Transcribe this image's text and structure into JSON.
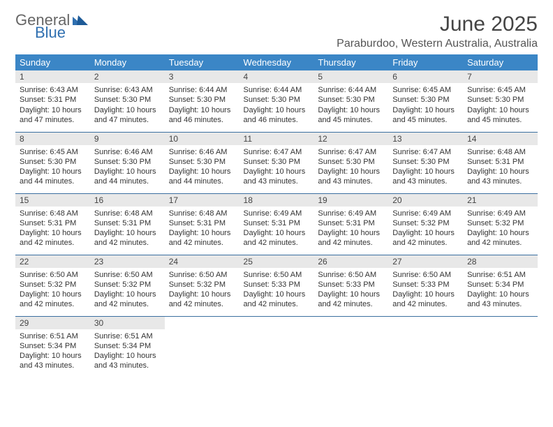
{
  "brand": {
    "part1": "General",
    "part2": "Blue"
  },
  "title": "June 2025",
  "location": "Paraburdoo, Western Australia, Australia",
  "colors": {
    "header_bg": "#3b86c6",
    "header_text": "#ffffff",
    "daynum_bg": "#e8e8e8",
    "row_border": "#3b6fa0",
    "brand_blue": "#2f6fb0"
  },
  "weekdays": [
    "Sunday",
    "Monday",
    "Tuesday",
    "Wednesday",
    "Thursday",
    "Friday",
    "Saturday"
  ],
  "days": [
    {
      "n": 1,
      "sr": "6:43 AM",
      "ss": "5:31 PM",
      "dl": "10 hours and 47 minutes."
    },
    {
      "n": 2,
      "sr": "6:43 AM",
      "ss": "5:30 PM",
      "dl": "10 hours and 47 minutes."
    },
    {
      "n": 3,
      "sr": "6:44 AM",
      "ss": "5:30 PM",
      "dl": "10 hours and 46 minutes."
    },
    {
      "n": 4,
      "sr": "6:44 AM",
      "ss": "5:30 PM",
      "dl": "10 hours and 46 minutes."
    },
    {
      "n": 5,
      "sr": "6:44 AM",
      "ss": "5:30 PM",
      "dl": "10 hours and 45 minutes."
    },
    {
      "n": 6,
      "sr": "6:45 AM",
      "ss": "5:30 PM",
      "dl": "10 hours and 45 minutes."
    },
    {
      "n": 7,
      "sr": "6:45 AM",
      "ss": "5:30 PM",
      "dl": "10 hours and 45 minutes."
    },
    {
      "n": 8,
      "sr": "6:45 AM",
      "ss": "5:30 PM",
      "dl": "10 hours and 44 minutes."
    },
    {
      "n": 9,
      "sr": "6:46 AM",
      "ss": "5:30 PM",
      "dl": "10 hours and 44 minutes."
    },
    {
      "n": 10,
      "sr": "6:46 AM",
      "ss": "5:30 PM",
      "dl": "10 hours and 44 minutes."
    },
    {
      "n": 11,
      "sr": "6:47 AM",
      "ss": "5:30 PM",
      "dl": "10 hours and 43 minutes."
    },
    {
      "n": 12,
      "sr": "6:47 AM",
      "ss": "5:30 PM",
      "dl": "10 hours and 43 minutes."
    },
    {
      "n": 13,
      "sr": "6:47 AM",
      "ss": "5:30 PM",
      "dl": "10 hours and 43 minutes."
    },
    {
      "n": 14,
      "sr": "6:48 AM",
      "ss": "5:31 PM",
      "dl": "10 hours and 43 minutes."
    },
    {
      "n": 15,
      "sr": "6:48 AM",
      "ss": "5:31 PM",
      "dl": "10 hours and 42 minutes."
    },
    {
      "n": 16,
      "sr": "6:48 AM",
      "ss": "5:31 PM",
      "dl": "10 hours and 42 minutes."
    },
    {
      "n": 17,
      "sr": "6:48 AM",
      "ss": "5:31 PM",
      "dl": "10 hours and 42 minutes."
    },
    {
      "n": 18,
      "sr": "6:49 AM",
      "ss": "5:31 PM",
      "dl": "10 hours and 42 minutes."
    },
    {
      "n": 19,
      "sr": "6:49 AM",
      "ss": "5:31 PM",
      "dl": "10 hours and 42 minutes."
    },
    {
      "n": 20,
      "sr": "6:49 AM",
      "ss": "5:32 PM",
      "dl": "10 hours and 42 minutes."
    },
    {
      "n": 21,
      "sr": "6:49 AM",
      "ss": "5:32 PM",
      "dl": "10 hours and 42 minutes."
    },
    {
      "n": 22,
      "sr": "6:50 AM",
      "ss": "5:32 PM",
      "dl": "10 hours and 42 minutes."
    },
    {
      "n": 23,
      "sr": "6:50 AM",
      "ss": "5:32 PM",
      "dl": "10 hours and 42 minutes."
    },
    {
      "n": 24,
      "sr": "6:50 AM",
      "ss": "5:32 PM",
      "dl": "10 hours and 42 minutes."
    },
    {
      "n": 25,
      "sr": "6:50 AM",
      "ss": "5:33 PM",
      "dl": "10 hours and 42 minutes."
    },
    {
      "n": 26,
      "sr": "6:50 AM",
      "ss": "5:33 PM",
      "dl": "10 hours and 42 minutes."
    },
    {
      "n": 27,
      "sr": "6:50 AM",
      "ss": "5:33 PM",
      "dl": "10 hours and 42 minutes."
    },
    {
      "n": 28,
      "sr": "6:51 AM",
      "ss": "5:34 PM",
      "dl": "10 hours and 43 minutes."
    },
    {
      "n": 29,
      "sr": "6:51 AM",
      "ss": "5:34 PM",
      "dl": "10 hours and 43 minutes."
    },
    {
      "n": 30,
      "sr": "6:51 AM",
      "ss": "5:34 PM",
      "dl": "10 hours and 43 minutes."
    }
  ],
  "labels": {
    "sunrise": "Sunrise:",
    "sunset": "Sunset:",
    "daylight": "Daylight:"
  },
  "layout": {
    "first_weekday_index": 0,
    "total_cells": 35
  }
}
